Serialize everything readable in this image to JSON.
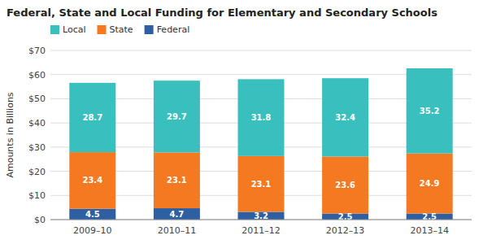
{
  "chart_data": {
    "type": "bar",
    "title": "Federal, State and Local Funding for Elementary and Secondary Schools",
    "categories": [
      "2009–10",
      "2010–11",
      "2011–12",
      "2012–13",
      "2013–14"
    ],
    "series": [
      {
        "name": "Federal",
        "color": "#2E5FA3",
        "values": [
          4.5,
          4.7,
          3.2,
          2.5,
          2.5
        ]
      },
      {
        "name": "State",
        "color": "#F47920",
        "values": [
          23.4,
          23.1,
          23.1,
          23.6,
          24.9
        ]
      },
      {
        "name": "Local",
        "color": "#3ABFBF",
        "values": [
          28.7,
          29.7,
          31.8,
          32.4,
          35.2
        ]
      }
    ],
    "stacked": true,
    "ylabel": "Amounts in Billions",
    "ylim": [
      0,
      70
    ],
    "yticks": [
      {
        "value": 0,
        "label": "$0"
      },
      {
        "value": 10,
        "label": "$10"
      },
      {
        "value": 20,
        "label": "$20"
      },
      {
        "value": 30,
        "label": "$30"
      },
      {
        "value": 40,
        "label": "$40"
      },
      {
        "value": 50,
        "label": "$50"
      },
      {
        "value": 60,
        "label": "$60"
      },
      {
        "value": 70,
        "label": "$70"
      }
    ],
    "grid": true,
    "legend": "top-left",
    "data_labels": true
  }
}
